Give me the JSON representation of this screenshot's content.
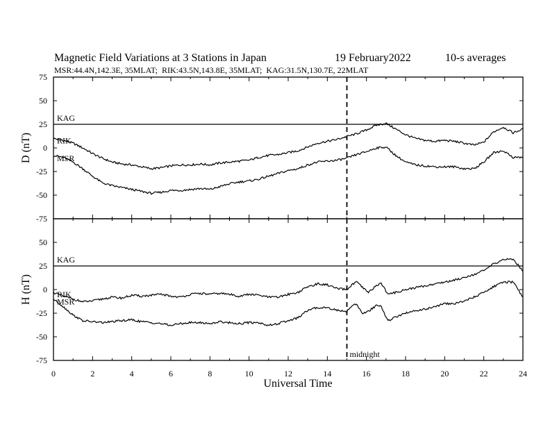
{
  "header": {
    "title": "Magnetic Field Variations at 3 Stations in Japan",
    "date": "19 February2022",
    "averaging": "10-s averages",
    "stations_line": "MSR:44.4N,142.3E, 35MLAT;  RIK:43.5N,143.8E, 35MLAT;  KAG:31.5N,130.7E, 22MLAT"
  },
  "chart_data": {
    "type": "line",
    "xlabel": "Universal Time",
    "xlim": [
      0,
      24
    ],
    "xticks": [
      0,
      2,
      4,
      6,
      8,
      10,
      12,
      14,
      16,
      18,
      20,
      22,
      24
    ],
    "annotation": {
      "x": 15,
      "label": "midnight",
      "style": "dashed"
    },
    "panels": [
      {
        "ylabel": "D (nT)",
        "ylim": [
          -75,
          75
        ],
        "yticks": [
          75,
          50,
          25,
          0,
          -25,
          -50,
          -75
        ],
        "series": [
          {
            "name": "KAG",
            "x": [
              0,
              24
            ],
            "y": [
              25,
              25
            ]
          },
          {
            "name": "RIK",
            "x": [
              0,
              0.5,
              1,
              1.5,
              2,
              2.5,
              3,
              3.5,
              4,
              4.5,
              5,
              5.5,
              6,
              6.5,
              7,
              7.5,
              8,
              8.5,
              9,
              9.5,
              10,
              10.5,
              11,
              11.5,
              12,
              12.5,
              13,
              13.5,
              14,
              14.5,
              15,
              15.5,
              16,
              16.5,
              17,
              17.5,
              18,
              18.5,
              19,
              19.5,
              20,
              20.5,
              21,
              21.5,
              22,
              22.5,
              23,
              23.5,
              24
            ],
            "y": [
              10,
              8,
              5,
              0,
              -6,
              -11,
              -15,
              -17,
              -18,
              -20,
              -22,
              -21,
              -19,
              -18,
              -18,
              -17,
              -18,
              -16,
              -15,
              -14,
              -13,
              -10,
              -8,
              -7,
              -5,
              -3,
              1,
              5,
              7,
              9,
              12,
              15,
              19,
              24,
              26,
              20,
              14,
              10,
              8,
              7,
              8,
              7,
              5,
              3,
              6,
              17,
              22,
              16,
              20
            ]
          },
          {
            "name": "MSR",
            "x": [
              0,
              0.5,
              1,
              1.5,
              2,
              2.5,
              3,
              3.5,
              4,
              4.5,
              5,
              5.5,
              6,
              6.5,
              7,
              7.5,
              8,
              8.5,
              9,
              9.5,
              10,
              10.5,
              11,
              11.5,
              12,
              12.5,
              13,
              13.5,
              14,
              14.5,
              15,
              15.5,
              16,
              16.5,
              17,
              17.5,
              18,
              18.5,
              19,
              19.5,
              20,
              20.5,
              21,
              21.5,
              22,
              22.5,
              23,
              23.5,
              24
            ],
            "y": [
              -8,
              -10,
              -15,
              -22,
              -30,
              -37,
              -40,
              -42,
              -44,
              -46,
              -48,
              -47,
              -45,
              -45,
              -44,
              -43,
              -44,
              -41,
              -38,
              -36,
              -35,
              -33,
              -30,
              -27,
              -24,
              -22,
              -18,
              -15,
              -14,
              -13,
              -11,
              -7,
              -4,
              0,
              1,
              -8,
              -15,
              -18,
              -19,
              -20,
              -20,
              -20,
              -22,
              -22,
              -15,
              -5,
              -3,
              -10,
              -10
            ]
          }
        ]
      },
      {
        "ylabel": "H (nT)",
        "ylim": [
          -75,
          75
        ],
        "yticks": [
          75,
          50,
          25,
          0,
          -25,
          -50,
          -75
        ],
        "series": [
          {
            "name": "KAG",
            "x": [
              0,
              24
            ],
            "y": [
              25,
              25
            ]
          },
          {
            "name": "RIK",
            "x": [
              0,
              0.5,
              1,
              1.5,
              2,
              2.5,
              3,
              3.5,
              4,
              4.5,
              5,
              5.5,
              6,
              6.5,
              7,
              7.5,
              8,
              8.5,
              9,
              9.5,
              10,
              10.5,
              11,
              11.5,
              12,
              12.5,
              13,
              13.5,
              14,
              14.5,
              15,
              15.25,
              15.5,
              15.8,
              16.1,
              16.5,
              16.75,
              17.1,
              17.5,
              18,
              18.5,
              19,
              19.5,
              20,
              20.5,
              21,
              21.5,
              22,
              22.5,
              23,
              23.5,
              24
            ],
            "y": [
              -3,
              -7,
              -10,
              -13,
              -12,
              -10,
              -8,
              -9,
              -6,
              -7,
              -6,
              -5,
              -7,
              -8,
              -5,
              -4,
              -5,
              -4,
              -5,
              -7,
              -5,
              -6,
              -8,
              -8,
              -5,
              -3,
              3,
              6,
              5,
              1,
              0,
              5,
              8,
              2,
              -3,
              4,
              7,
              -5,
              -3,
              0,
              2,
              4,
              6,
              8,
              10,
              13,
              16,
              20,
              27,
              32,
              32,
              20
            ]
          },
          {
            "name": "MSR",
            "x": [
              0,
              0.5,
              1,
              1.5,
              2,
              2.5,
              3,
              3.5,
              4,
              4.5,
              5,
              5.5,
              6,
              6.5,
              7,
              7.5,
              8,
              8.5,
              9,
              9.5,
              10,
              10.5,
              11,
              11.5,
              12,
              12.5,
              13,
              13.5,
              14,
              14.5,
              15,
              15.25,
              15.5,
              15.8,
              16.1,
              16.5,
              16.75,
              17.1,
              17.5,
              18,
              18.5,
              19,
              19.5,
              20,
              20.5,
              21,
              21.5,
              22,
              22.5,
              23,
              23.5,
              24
            ],
            "y": [
              -10,
              -18,
              -27,
              -33,
              -34,
              -35,
              -34,
              -33,
              -32,
              -34,
              -35,
              -36,
              -38,
              -36,
              -35,
              -35,
              -36,
              -34,
              -35,
              -36,
              -35,
              -35,
              -38,
              -36,
              -33,
              -30,
              -22,
              -19,
              -19,
              -22,
              -23,
              -17,
              -15,
              -26,
              -23,
              -17,
              -18,
              -33,
              -29,
              -25,
              -22,
              -21,
              -18,
              -15,
              -15,
              -12,
              -8,
              -3,
              3,
              8,
              8,
              -8
            ]
          }
        ]
      }
    ]
  }
}
